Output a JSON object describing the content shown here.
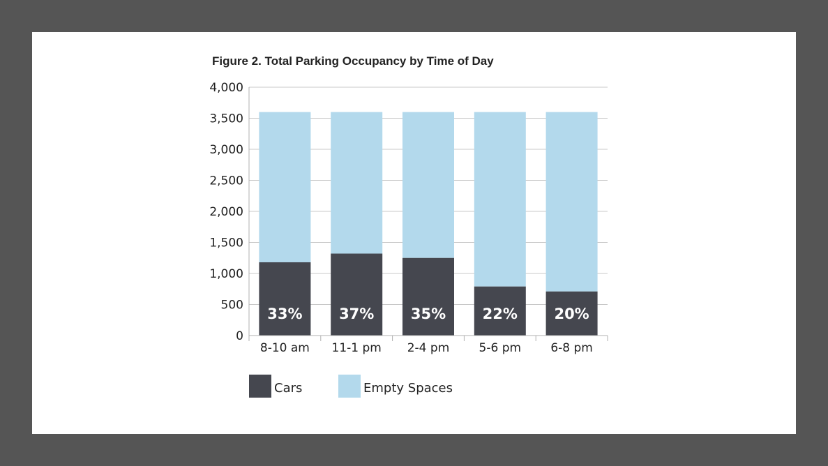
{
  "chart_data": {
    "type": "bar",
    "stacked": true,
    "title": "Figure 2. Total Parking Occupancy by Time of Day",
    "xlabel": "",
    "ylabel": "",
    "categories": [
      "8-10 am",
      "11-1 pm",
      "2-4 pm",
      "5-6 pm",
      "6-8 pm"
    ],
    "series": [
      {
        "name": "Cars",
        "values": [
          1180,
          1320,
          1250,
          790,
          710
        ],
        "data_labels": [
          "33%",
          "37%",
          "35%",
          "22%",
          "20%"
        ],
        "color": "#45474f"
      },
      {
        "name": "Empty Spaces",
        "values": [
          2420,
          2280,
          2350,
          2810,
          2890
        ],
        "color": "#b3d9ec"
      }
    ],
    "ylim": [
      0,
      4000
    ],
    "yticks": [
      0,
      500,
      1000,
      1500,
      2000,
      2500,
      3000,
      3500,
      4000
    ],
    "ytick_labels": [
      "0",
      "500",
      "1,000",
      "1,500",
      "2,000",
      "2,500",
      "3,000",
      "3,500",
      "4,000"
    ],
    "grid": true,
    "legend_position": "bottom-left"
  }
}
